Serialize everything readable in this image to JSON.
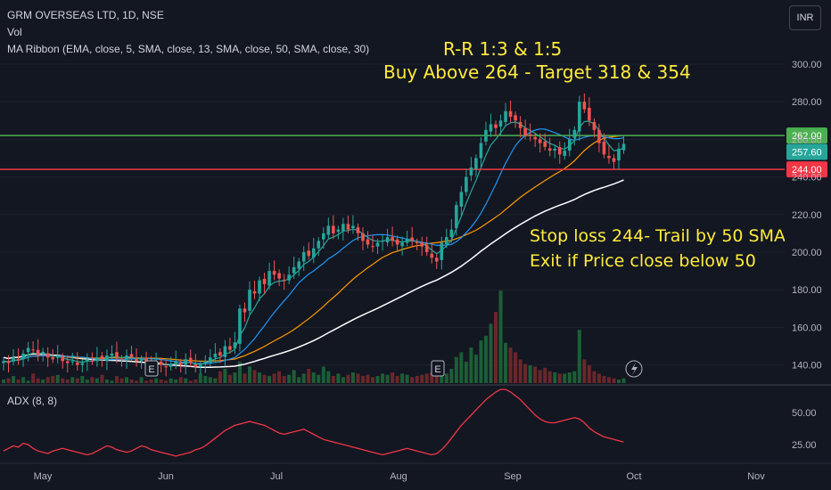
{
  "header": {
    "symbol_line": "GRM OVERSEAS LTD, 1D, NSE",
    "volume_label": "Vol",
    "ma_ribbon_label": "MA Ribbon (EMA, close, 5, SMA, close, 13, SMA, close, 50, SMA, close, 30)",
    "currency_button": "INR"
  },
  "annotations": {
    "rr_text": "R-R 1:3 & 1:5",
    "buy_text": "Buy Above 264 - Target 318 & 354",
    "stop_text": "Stop loss 244- Trail by 50 SMA",
    "exit_text": "Exit if Price close below 50"
  },
  "colors": {
    "background": "#131722",
    "up": "#26a69a",
    "down": "#ef5350",
    "resistance_line": "#4caf50",
    "support_line": "#f23645",
    "ema5": "#26a69a",
    "sma13": "#2196f3",
    "sma30": "#ff9800",
    "sma50": "#ffffff",
    "adx": "#f23645"
  },
  "chart_data": [
    {
      "type": "candlestick",
      "x_axis": {
        "labels": [
          "May",
          "Jun",
          "Jul",
          "Aug",
          "Sep",
          "Oct",
          "Nov"
        ]
      },
      "y_axis": {
        "ticks": [
          "300.00",
          "280.00",
          "260.00",
          "240.00",
          "220.00",
          "200.00",
          "180.00",
          "160.00",
          "140.00"
        ],
        "range": [
          133,
          306
        ]
      },
      "horizontal_lines": [
        {
          "label": "262.00",
          "value": 262,
          "color": "#4caf50"
        },
        {
          "label": "244.00",
          "value": 244,
          "color": "#f23645"
        }
      ],
      "last_price": {
        "label": "257.60",
        "value": 257.6
      },
      "event_markers": [
        "E",
        "E"
      ],
      "price_closes": [
        142,
        141,
        144,
        143,
        146,
        149,
        148,
        145,
        147,
        144,
        143,
        145,
        142,
        141,
        142,
        140,
        141,
        143,
        142,
        144,
        143,
        145,
        146,
        144,
        143,
        145,
        144,
        142,
        143,
        141,
        140,
        141,
        140,
        139,
        140,
        142,
        140,
        143,
        141,
        139,
        140,
        142,
        144,
        146,
        145,
        150,
        148,
        152,
        170,
        168,
        180,
        178,
        185,
        183,
        190,
        188,
        186,
        185,
        188,
        192,
        195,
        200,
        198,
        202,
        206,
        210,
        214,
        210,
        212,
        215,
        212,
        214,
        210,
        206,
        204,
        203,
        205,
        206,
        208,
        206,
        204,
        205,
        207,
        206,
        205,
        203,
        200,
        197,
        195,
        205,
        208,
        212,
        225,
        232,
        240,
        245,
        250,
        258,
        265,
        268,
        266,
        270,
        275,
        272,
        270,
        266,
        262,
        262,
        260,
        258,
        256,
        254,
        255,
        252,
        254,
        260,
        265,
        280,
        276,
        270,
        265,
        258,
        252,
        250,
        248,
        255,
        257.6
      ],
      "volume_scale": "relative",
      "volume": [
        3,
        4,
        6,
        3,
        5,
        2,
        8,
        4,
        3,
        5,
        6,
        7,
        4,
        3,
        5,
        4,
        6,
        3,
        5,
        4,
        7,
        3,
        2,
        6,
        4,
        5,
        3,
        2,
        5,
        2,
        3,
        4,
        3,
        2,
        4,
        3,
        5,
        4,
        2,
        3,
        8,
        6,
        5,
        4,
        10,
        12,
        7,
        9,
        18,
        8,
        14,
        11,
        9,
        7,
        6,
        8,
        10,
        6,
        7,
        11,
        5,
        8,
        12,
        9,
        7,
        14,
        10,
        6,
        8,
        5,
        7,
        9,
        8,
        6,
        7,
        5,
        6,
        8,
        7,
        9,
        6,
        8,
        7,
        5,
        6,
        7,
        8,
        9,
        7,
        10,
        8,
        12,
        22,
        26,
        18,
        30,
        24,
        36,
        40,
        50,
        60,
        78,
        34,
        30,
        26,
        20,
        16,
        15,
        14,
        11,
        13,
        10,
        9,
        8,
        8,
        9,
        10,
        45,
        20,
        15,
        10,
        8,
        6,
        5,
        4,
        3,
        4
      ]
    },
    {
      "type": "line",
      "title": "ADX (8, 8)",
      "y_axis": {
        "ticks": [
          "50.00",
          "25.00"
        ]
      },
      "values": [
        20,
        22,
        24,
        23,
        26,
        25,
        22,
        20,
        19,
        18,
        20,
        21,
        22,
        21,
        20,
        19,
        18,
        17,
        18,
        20,
        22,
        24,
        23,
        21,
        20,
        19,
        20,
        22,
        24,
        23,
        21,
        20,
        19,
        18,
        17,
        16,
        17,
        18,
        19,
        21,
        22,
        24,
        27,
        30,
        33,
        36,
        38,
        40,
        41,
        42,
        43,
        42,
        41,
        40,
        38,
        36,
        34,
        33,
        34,
        35,
        36,
        37,
        35,
        33,
        31,
        29,
        28,
        27,
        26,
        25,
        24,
        23,
        22,
        21,
        20,
        19,
        18,
        17,
        18,
        19,
        20,
        21,
        22,
        21,
        20,
        19,
        18,
        17,
        18,
        21,
        25,
        30,
        35,
        40,
        44,
        48,
        52,
        56,
        60,
        63,
        66,
        68,
        68,
        66,
        63,
        60,
        56,
        52,
        48,
        45,
        43,
        42,
        42,
        43,
        44,
        45,
        46,
        45,
        42,
        38,
        35,
        33,
        31,
        30,
        29,
        28,
        27
      ]
    }
  ]
}
